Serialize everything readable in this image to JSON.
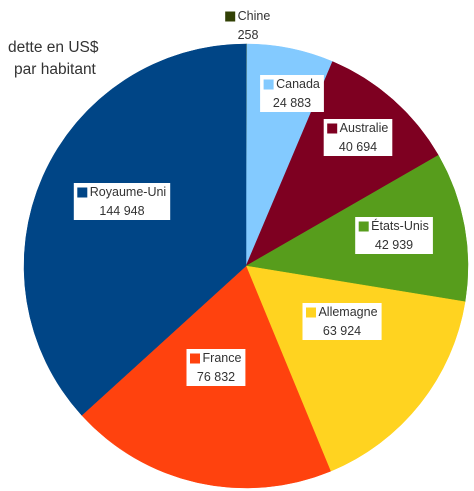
{
  "chart_data": {
    "type": "pie",
    "title_lines": [
      "dette en US$",
      "par habitant"
    ],
    "slices": [
      {
        "label": "Chine",
        "value": 258,
        "value_text": "258",
        "color": "#314004"
      },
      {
        "label": "Canada",
        "value": 24883,
        "value_text": "24 883",
        "color": "#83caff"
      },
      {
        "label": "Australie",
        "value": 40694,
        "value_text": "40 694",
        "color": "#7e0021"
      },
      {
        "label": "États-Unis",
        "value": 42939,
        "value_text": "42 939",
        "color": "#579d1c"
      },
      {
        "label": "Allemagne",
        "value": 63924,
        "value_text": "63 924",
        "color": "#ffd320"
      },
      {
        "label": "France",
        "value": 76832,
        "value_text": "76 832",
        "color": "#ff420e"
      },
      {
        "label": "Royaume-Uni",
        "value": 144948,
        "value_text": "144 948",
        "color": "#004586"
      }
    ],
    "start_angle": "12 o'clock",
    "direction": "clockwise",
    "legend": "none"
  }
}
